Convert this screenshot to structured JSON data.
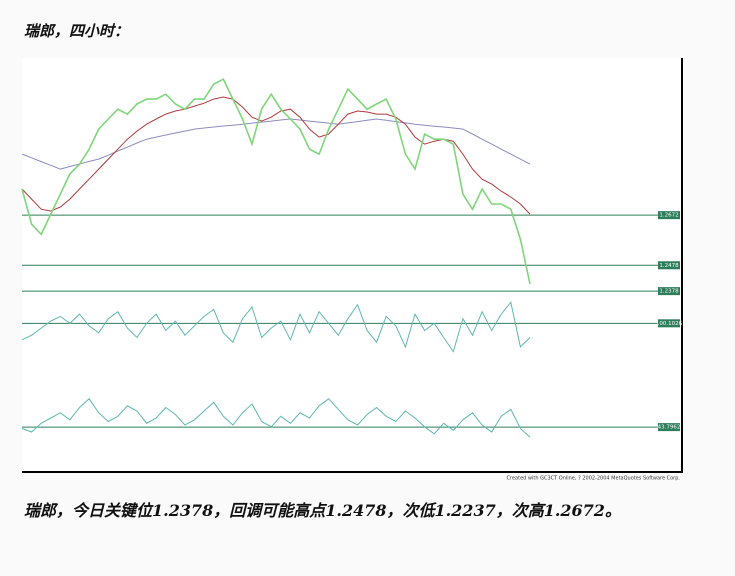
{
  "header": {
    "title": "瑞郎，四小时："
  },
  "chart_data": {
    "type": "line",
    "categories": [
      null,
      null,
      null,
      null,
      null,
      null,
      null,
      null,
      null,
      null,
      null,
      null,
      null,
      null,
      null,
      null,
      null,
      null,
      null,
      null,
      null,
      null,
      null,
      null,
      null,
      null,
      null,
      null,
      null,
      null,
      null,
      null,
      null,
      null,
      null,
      null,
      null,
      null,
      null,
      null,
      null,
      null,
      null,
      null,
      null,
      null,
      null,
      null,
      null,
      null,
      null,
      null,
      null,
      null
    ],
    "ylim": [
      1.2363,
      1.328
    ],
    "series": [
      {
        "color": "#7fd67a",
        "values": [
          1.2773,
          1.2637,
          1.2598,
          1.2676,
          1.2753,
          1.2831,
          1.2869,
          1.2927,
          1.3005,
          1.3044,
          1.3082,
          1.3063,
          1.3102,
          1.3121,
          1.3121,
          1.314,
          1.3102,
          1.3082,
          1.3121,
          1.3121,
          1.3179,
          1.3198,
          1.3121,
          1.3044,
          1.2947,
          1.3082,
          1.314,
          1.3082,
          1.3044,
          1.3005,
          1.2927,
          1.2908,
          1.3005,
          1.3082,
          1.316,
          1.3121,
          1.3082,
          1.3102,
          1.3121,
          1.3044,
          1.2908,
          1.285,
          1.2985,
          1.2966,
          1.2966,
          1.2947,
          1.2753,
          1.2695,
          1.2773,
          1.2715,
          1.2715,
          1.2695,
          1.2579,
          1.2405
        ]
      },
      {
        "color": "#b03a3a",
        "values": [
          1.2773,
          1.2734,
          1.2695,
          1.2688,
          1.2703,
          1.2734,
          1.2773,
          1.2811,
          1.285,
          1.2889,
          1.2927,
          1.2966,
          1.2997,
          1.3024,
          1.3044,
          1.3063,
          1.3075,
          1.3082,
          1.3094,
          1.3105,
          1.3121,
          1.3129,
          1.3121,
          1.309,
          1.3051,
          1.3036,
          1.3051,
          1.3075,
          1.3082,
          1.3051,
          1.3005,
          1.2974,
          1.2986,
          1.3024,
          1.3063,
          1.3075,
          1.3071,
          1.3063,
          1.3063,
          1.3051,
          1.3024,
          1.2974,
          1.2947,
          1.2958,
          1.2966,
          1.2958,
          1.2908,
          1.285,
          1.2811,
          1.2792,
          1.2765,
          1.2742,
          1.2715,
          1.2676
        ]
      },
      {
        "color": "#8c8cc0",
        "values": [
          1.2908,
          1.2894,
          1.2879,
          1.2865,
          1.285,
          1.286,
          1.287,
          1.288,
          1.2889,
          1.2904,
          1.292,
          1.2935,
          1.2951,
          1.2966,
          1.2974,
          1.2982,
          1.299,
          1.2997,
          1.3005,
          1.3009,
          1.3013,
          1.3017,
          1.302,
          1.3024,
          1.3028,
          1.3032,
          1.3036,
          1.304,
          1.3044,
          1.304,
          1.3036,
          1.3032,
          1.3028,
          1.3024,
          1.3029,
          1.3034,
          1.3039,
          1.3044,
          1.3039,
          1.3034,
          1.3029,
          1.3024,
          1.302,
          1.3016,
          1.3013,
          1.3009,
          1.3005,
          1.2986,
          1.2966,
          1.2947,
          1.2927,
          1.2908,
          1.2889,
          1.2869
        ]
      }
    ],
    "levels": [
      1.2672,
      1.2478,
      1.2378
    ],
    "level_color": "#2e7d5b",
    "indicators": [
      {
        "color": "#5fb8b0",
        "ylim": [
          99.0,
          100.6
        ],
        "level": 100.1026,
        "values": [
          99.75,
          99.85,
          100.0,
          100.15,
          100.25,
          100.1,
          100.3,
          100.05,
          99.9,
          100.2,
          100.35,
          100.0,
          99.8,
          100.1,
          100.3,
          99.95,
          100.15,
          99.85,
          100.05,
          100.25,
          100.4,
          99.9,
          99.7,
          100.2,
          100.45,
          99.8,
          100.0,
          100.15,
          99.75,
          100.3,
          99.9,
          100.35,
          100.1,
          99.85,
          100.2,
          100.5,
          99.95,
          99.7,
          100.25,
          100.05,
          99.6,
          100.3,
          99.95,
          100.1,
          99.8,
          99.5,
          100.2,
          99.85,
          100.35,
          99.95,
          100.3,
          100.55,
          99.6,
          99.8
        ]
      },
      {
        "color": "#5fb8b0",
        "ylim": [
          25,
          65
        ],
        "level": 43.7962,
        "values": [
          43,
          41,
          46,
          49,
          52,
          48,
          55,
          60,
          52,
          47,
          50,
          56,
          53,
          46,
          49,
          55,
          51,
          45,
          48,
          53,
          58,
          50,
          45,
          52,
          57,
          47,
          44,
          50,
          46,
          52,
          49,
          56,
          60,
          54,
          48,
          45,
          51,
          55,
          50,
          47,
          53,
          49,
          44,
          40,
          46,
          42,
          48,
          52,
          45,
          41,
          50,
          54,
          43,
          38
        ]
      }
    ],
    "credit": "Created with GC3CT Online, ? 2002-2004 MetaQuotes Software Corp."
  },
  "footer": {
    "text": "瑞郎，今日关键位1.2378，回调可能高点1.2478，次低1.2237，次高1.2672。"
  }
}
